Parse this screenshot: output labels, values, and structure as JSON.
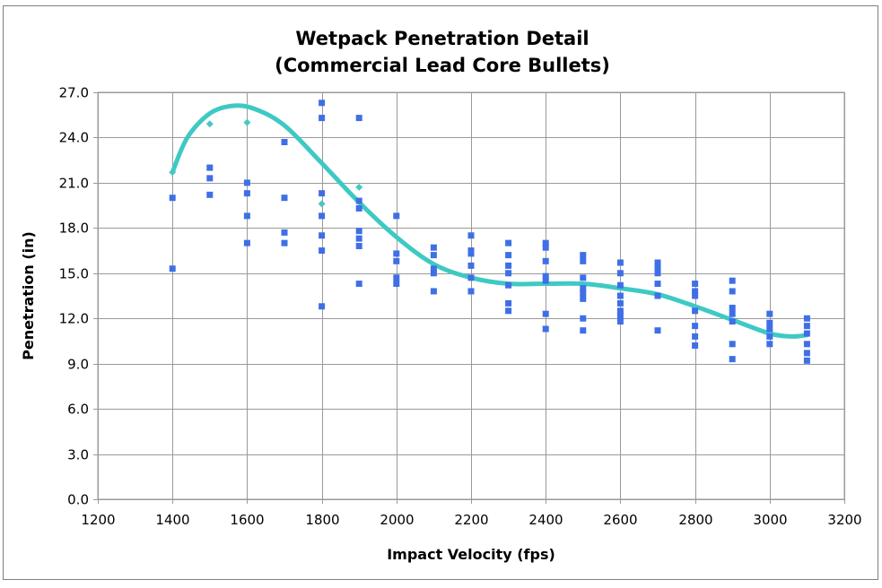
{
  "chart_data": {
    "type": "scatter",
    "title_lines": [
      "Wetpack Penetration Detail",
      "(Commercial Lead Core Bullets)"
    ],
    "xlabel": "Impact Velocity (fps)",
    "ylabel": "Penetration (in)",
    "xlim": [
      1200,
      3200
    ],
    "ylim": [
      0,
      27
    ],
    "x_ticks": [
      "1200",
      "1400",
      "1600",
      "1800",
      "2000",
      "2200",
      "2400",
      "2600",
      "2800",
      "3000",
      "3200"
    ],
    "y_ticks": [
      "0.0",
      "3.0",
      "6.0",
      "9.0",
      "12.0",
      "15.0",
      "18.0",
      "21.0",
      "24.0",
      "27.0"
    ],
    "grid": true,
    "legend": "none",
    "colors": {
      "points": "#3f6fe6",
      "diamonds": "#49c7c2",
      "trend": "#3ec9c4",
      "grid": "#9a9a9a"
    },
    "series": [
      {
        "marker": "square",
        "points": [
          [
            1400,
            15.3
          ],
          [
            1400,
            20.0
          ],
          [
            1500,
            20.2
          ],
          [
            1500,
            21.3
          ],
          [
            1500,
            22.0
          ],
          [
            1600,
            17.0
          ],
          [
            1600,
            18.8
          ],
          [
            1600,
            20.3
          ],
          [
            1600,
            21.0
          ],
          [
            1700,
            17.0
          ],
          [
            1700,
            17.7
          ],
          [
            1700,
            20.0
          ],
          [
            1700,
            23.7
          ],
          [
            1800,
            12.8
          ],
          [
            1800,
            16.5
          ],
          [
            1800,
            17.5
          ],
          [
            1800,
            18.8
          ],
          [
            1800,
            20.3
          ],
          [
            1800,
            25.3
          ],
          [
            1800,
            26.3
          ],
          [
            1900,
            14.3
          ],
          [
            1900,
            16.8
          ],
          [
            1900,
            17.3
          ],
          [
            1900,
            17.8
          ],
          [
            1900,
            19.3
          ],
          [
            1900,
            19.8
          ],
          [
            1900,
            25.3
          ],
          [
            2000,
            14.3
          ],
          [
            2000,
            14.7
          ],
          [
            2000,
            15.8
          ],
          [
            2000,
            16.3
          ],
          [
            2000,
            18.8
          ],
          [
            2100,
            13.8
          ],
          [
            2100,
            15.0
          ],
          [
            2100,
            15.3
          ],
          [
            2100,
            16.2
          ],
          [
            2100,
            16.7
          ],
          [
            2200,
            13.8
          ],
          [
            2200,
            14.7
          ],
          [
            2200,
            15.5
          ],
          [
            2200,
            16.3
          ],
          [
            2200,
            16.5
          ],
          [
            2200,
            17.5
          ],
          [
            2300,
            12.5
          ],
          [
            2300,
            13.0
          ],
          [
            2300,
            14.2
          ],
          [
            2300,
            15.0
          ],
          [
            2300,
            15.5
          ],
          [
            2300,
            16.2
          ],
          [
            2300,
            17.0
          ],
          [
            2400,
            11.3
          ],
          [
            2400,
            12.3
          ],
          [
            2400,
            14.5
          ],
          [
            2400,
            14.8
          ],
          [
            2400,
            15.8
          ],
          [
            2400,
            16.7
          ],
          [
            2400,
            17.0
          ],
          [
            2500,
            11.2
          ],
          [
            2500,
            12.0
          ],
          [
            2500,
            13.3
          ],
          [
            2500,
            13.7
          ],
          [
            2500,
            14.0
          ],
          [
            2500,
            14.7
          ],
          [
            2500,
            15.8
          ],
          [
            2500,
            16.2
          ],
          [
            2600,
            11.8
          ],
          [
            2600,
            12.2
          ],
          [
            2600,
            12.5
          ],
          [
            2600,
            13.0
          ],
          [
            2600,
            13.5
          ],
          [
            2600,
            14.2
          ],
          [
            2600,
            15.0
          ],
          [
            2600,
            15.7
          ],
          [
            2700,
            11.2
          ],
          [
            2700,
            13.5
          ],
          [
            2700,
            14.3
          ],
          [
            2700,
            15.0
          ],
          [
            2700,
            15.3
          ],
          [
            2700,
            15.7
          ],
          [
            2800,
            10.2
          ],
          [
            2800,
            10.8
          ],
          [
            2800,
            11.5
          ],
          [
            2800,
            12.5
          ],
          [
            2800,
            13.5
          ],
          [
            2800,
            13.8
          ],
          [
            2800,
            14.3
          ],
          [
            2900,
            9.3
          ],
          [
            2900,
            10.3
          ],
          [
            2900,
            11.8
          ],
          [
            2900,
            12.3
          ],
          [
            2900,
            12.7
          ],
          [
            2900,
            13.8
          ],
          [
            2900,
            14.5
          ],
          [
            3000,
            10.3
          ],
          [
            3000,
            10.8
          ],
          [
            3000,
            11.3
          ],
          [
            3000,
            11.7
          ],
          [
            3000,
            12.3
          ],
          [
            3100,
            9.2
          ],
          [
            3100,
            9.7
          ],
          [
            3100,
            10.3
          ],
          [
            3100,
            11.0
          ],
          [
            3100,
            11.5
          ],
          [
            3100,
            12.0
          ]
        ]
      },
      {
        "marker": "diamond",
        "points": [
          [
            1400,
            21.7
          ],
          [
            1500,
            24.9
          ],
          [
            1600,
            25.0
          ],
          [
            1800,
            19.6
          ],
          [
            1900,
            20.7
          ]
        ]
      },
      {
        "marker": "line",
        "smooth": true,
        "points": [
          [
            1400,
            21.7
          ],
          [
            1440,
            24.0
          ],
          [
            1500,
            25.6
          ],
          [
            1560,
            26.1
          ],
          [
            1620,
            25.9
          ],
          [
            1700,
            24.8
          ],
          [
            1800,
            22.3
          ],
          [
            1900,
            19.7
          ],
          [
            2000,
            17.4
          ],
          [
            2100,
            15.6
          ],
          [
            2200,
            14.7
          ],
          [
            2300,
            14.3
          ],
          [
            2400,
            14.3
          ],
          [
            2500,
            14.3
          ],
          [
            2600,
            14.0
          ],
          [
            2700,
            13.6
          ],
          [
            2800,
            12.8
          ],
          [
            2900,
            11.9
          ],
          [
            3000,
            11.0
          ],
          [
            3060,
            10.8
          ],
          [
            3100,
            10.9
          ]
        ]
      }
    ]
  }
}
